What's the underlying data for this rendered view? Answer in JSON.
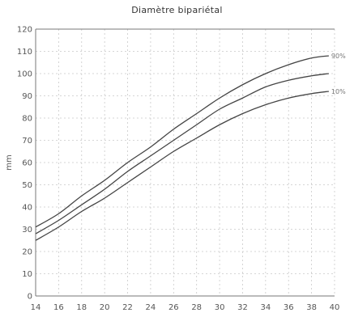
{
  "chart_data": {
    "type": "line",
    "title": "Diamètre bipariétal",
    "xlabel": "",
    "ylabel": "mm",
    "xlim": [
      14,
      40
    ],
    "ylim": [
      0,
      120
    ],
    "x_ticks": [
      14,
      16,
      18,
      20,
      22,
      24,
      26,
      28,
      30,
      32,
      34,
      36,
      38,
      40
    ],
    "y_ticks": [
      0,
      10,
      20,
      30,
      40,
      50,
      60,
      70,
      80,
      90,
      100,
      110,
      120
    ],
    "grid": true,
    "series": [
      {
        "name": "90%",
        "x": [
          14,
          16,
          18,
          20,
          22,
          24,
          26,
          28,
          30,
          32,
          34,
          36,
          38,
          39.5
        ],
        "y": [
          31,
          37,
          45,
          52,
          60,
          67,
          75,
          82,
          89,
          95,
          100,
          104,
          107,
          108
        ]
      },
      {
        "name": "",
        "x": [
          14,
          16,
          18,
          20,
          22,
          24,
          26,
          28,
          30,
          32,
          34,
          36,
          38,
          39.5
        ],
        "y": [
          28,
          34,
          41,
          48,
          56,
          63,
          70,
          77,
          84,
          89,
          94,
          97,
          99,
          100
        ]
      },
      {
        "name": "10%",
        "x": [
          14,
          16,
          18,
          20,
          22,
          24,
          26,
          28,
          30,
          32,
          34,
          36,
          38,
          39.5
        ],
        "y": [
          25,
          31,
          38,
          44,
          51,
          58,
          65,
          71,
          77,
          82,
          86,
          89,
          91,
          92
        ]
      }
    ]
  }
}
